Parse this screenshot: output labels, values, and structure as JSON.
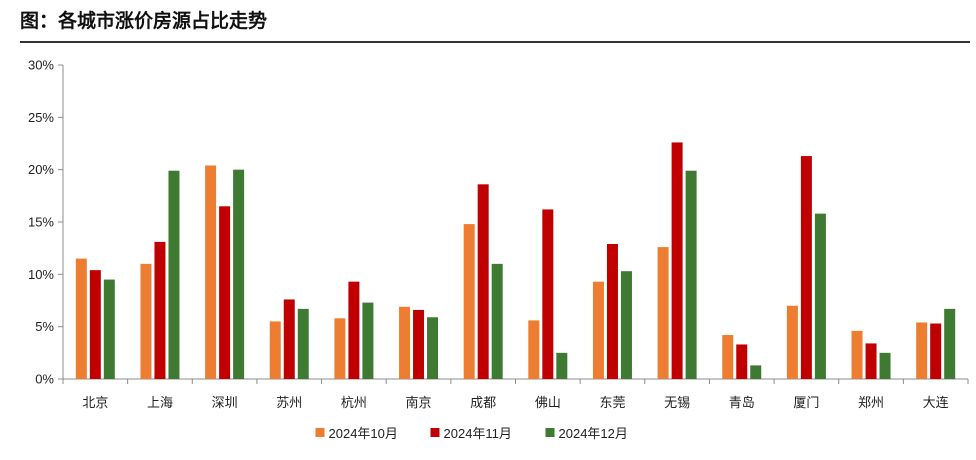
{
  "title": "图：各城市涨价房源占比走势",
  "chart_data": {
    "type": "bar",
    "title": "图：各城市涨价房源占比走势",
    "xlabel": "",
    "ylabel": "",
    "ylim": [
      0,
      30
    ],
    "yticks": [
      "0%",
      "5%",
      "10%",
      "15%",
      "20%",
      "25%",
      "30%"
    ],
    "ytick_values": [
      0,
      5,
      10,
      15,
      20,
      25,
      30
    ],
    "grid": false,
    "legend_position": "bottom",
    "categories": [
      "北京",
      "上海",
      "深圳",
      "苏州",
      "杭州",
      "南京",
      "成都",
      "佛山",
      "东莞",
      "无锡",
      "青岛",
      "厦门",
      "郑州",
      "大连"
    ],
    "series": [
      {
        "name": "2024年10月",
        "color": "#ED7D31",
        "values": [
          11.5,
          11.0,
          20.4,
          5.5,
          5.8,
          6.9,
          14.8,
          5.6,
          9.3,
          12.6,
          4.2,
          7.0,
          4.6,
          5.4
        ]
      },
      {
        "name": "2024年11月",
        "color": "#C00000",
        "values": [
          10.4,
          13.1,
          16.5,
          7.6,
          9.3,
          6.6,
          18.6,
          16.2,
          12.9,
          22.6,
          3.3,
          21.3,
          3.4,
          5.3
        ]
      },
      {
        "name": "2024年12月",
        "color": "#3F7A32",
        "values": [
          9.5,
          19.9,
          20.0,
          6.7,
          7.3,
          5.9,
          11.0,
          2.5,
          10.3,
          19.9,
          1.3,
          15.8,
          2.5,
          6.7
        ]
      }
    ]
  }
}
